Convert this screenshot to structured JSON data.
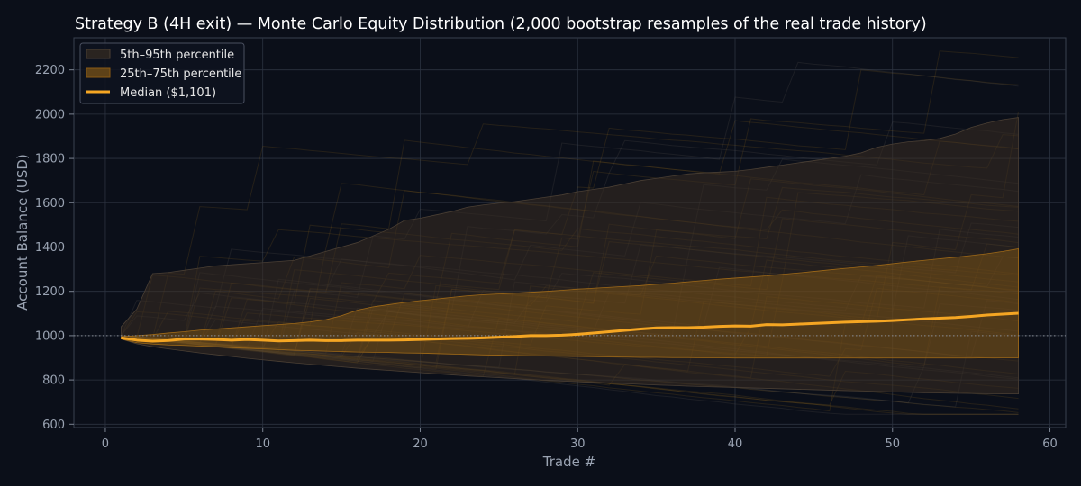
{
  "chart_data": {
    "type": "line",
    "title": "Strategy B (4H exit) — Monte Carlo Equity Distribution (2,000 bootstrap resamples of the real trade history)",
    "xlabel": "Trade #",
    "ylabel": "Account Balance (USD)",
    "xlim": [
      -2,
      61
    ],
    "ylim": [
      585,
      2345
    ],
    "xticks": [
      "0",
      "10",
      "20",
      "30",
      "40",
      "50",
      "60"
    ],
    "yticks": [
      "600",
      "800",
      "1000",
      "1200",
      "1400",
      "1600",
      "1800",
      "2000",
      "2200"
    ],
    "grid": true,
    "legend_position": "top-left",
    "reference_line": {
      "y": 1000,
      "style": "dotted"
    },
    "colors": {
      "background": "#0b0f19",
      "band_outer": "#2a2420",
      "band_inner": "#8a5a14",
      "median": "#f5a623",
      "sample_paths": "#b07a22",
      "grid": "#2c3340",
      "reference": "#8a8f98"
    },
    "x": [
      1,
      2,
      3,
      4,
      5,
      6,
      7,
      8,
      9,
      10,
      11,
      12,
      13,
      14,
      15,
      16,
      17,
      18,
      19,
      20,
      21,
      22,
      23,
      24,
      25,
      26,
      27,
      28,
      29,
      30,
      31,
      32,
      33,
      34,
      35,
      36,
      37,
      38,
      39,
      40,
      41,
      42,
      43,
      44,
      45,
      46,
      47,
      48,
      49,
      50,
      51,
      52,
      53,
      54,
      55,
      56,
      57,
      58
    ],
    "series": [
      {
        "name": "Median ($1,101)",
        "role": "median",
        "values": [
          990,
          980,
          975,
          978,
          985,
          985,
          983,
          980,
          983,
          980,
          976,
          978,
          980,
          978,
          978,
          980,
          980,
          980,
          981,
          983,
          985,
          987,
          988,
          990,
          993,
          996,
          1000,
          1000,
          1002,
          1006,
          1012,
          1018,
          1024,
          1030,
          1035,
          1036,
          1036,
          1038,
          1042,
          1044,
          1043,
          1050,
          1049,
          1052,
          1055,
          1058,
          1061,
          1063,
          1065,
          1068,
          1072,
          1076,
          1079,
          1082,
          1087,
          1093,
          1097,
          1101
        ]
      },
      {
        "name": "25th–75th percentile",
        "role": "band",
        "lower": [
          985,
          968,
          962,
          958,
          956,
          953,
          949,
          946,
          943,
          940,
          937,
          934,
          932,
          930,
          928,
          926,
          925,
          924,
          922,
          921,
          919,
          917,
          915,
          913,
          912,
          910,
          909,
          908,
          907,
          906,
          905,
          904,
          903,
          902,
          902,
          901,
          901,
          900,
          900,
          899,
          899,
          899,
          899,
          899,
          899,
          899,
          899,
          899,
          899,
          899,
          899,
          899,
          899,
          899,
          899,
          900,
          900,
          900
        ],
        "upper": [
          995,
          1000,
          1005,
          1012,
          1018,
          1025,
          1030,
          1035,
          1040,
          1045,
          1050,
          1055,
          1062,
          1072,
          1090,
          1115,
          1130,
          1140,
          1150,
          1158,
          1165,
          1173,
          1180,
          1185,
          1188,
          1192,
          1196,
          1200,
          1205,
          1210,
          1214,
          1218,
          1222,
          1226,
          1232,
          1237,
          1243,
          1249,
          1255,
          1260,
          1265,
          1270,
          1277,
          1283,
          1290,
          1297,
          1304,
          1310,
          1317,
          1325,
          1333,
          1340,
          1347,
          1354,
          1362,
          1370,
          1380,
          1392
        ]
      },
      {
        "name": "5th–95th percentile",
        "role": "band",
        "lower": [
          985,
          963,
          950,
          940,
          931,
          922,
          914,
          906,
          898,
          891,
          884,
          877,
          871,
          865,
          859,
          853,
          848,
          843,
          838,
          833,
          828,
          823,
          818,
          814,
          810,
          806,
          802,
          798,
          795,
          792,
          789,
          786,
          783,
          780,
          777,
          775,
          772,
          770,
          768,
          766,
          764,
          762,
          760,
          758,
          756,
          754,
          752,
          750,
          748,
          746,
          744,
          742,
          741,
          740,
          739,
          738,
          737,
          737
        ],
        "upper": [
          1040,
          1120,
          1280,
          1285,
          1295,
          1305,
          1315,
          1320,
          1325,
          1330,
          1335,
          1340,
          1360,
          1380,
          1400,
          1420,
          1450,
          1480,
          1520,
          1530,
          1545,
          1560,
          1580,
          1590,
          1598,
          1605,
          1615,
          1625,
          1635,
          1650,
          1660,
          1670,
          1685,
          1700,
          1710,
          1720,
          1730,
          1735,
          1738,
          1742,
          1750,
          1760,
          1770,
          1780,
          1790,
          1800,
          1810,
          1825,
          1850,
          1865,
          1875,
          1880,
          1890,
          1910,
          1940,
          1960,
          1975,
          1985
        ]
      }
    ],
    "legend": [
      "5th–95th percentile",
      "25th–75th percentile",
      "Median ($1,101)"
    ]
  }
}
